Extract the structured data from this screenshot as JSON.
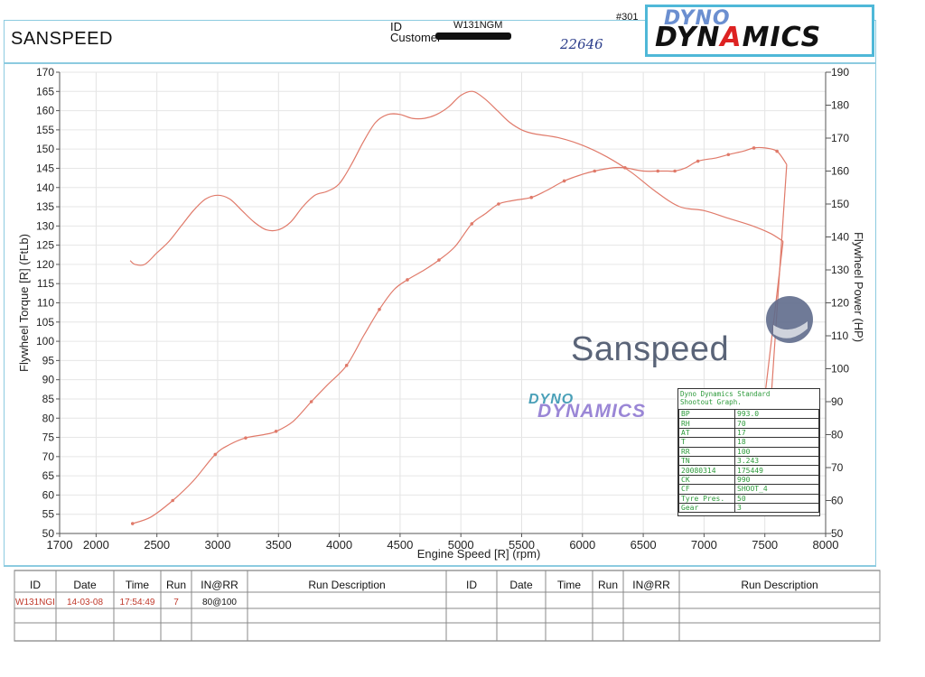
{
  "header": {
    "company": "SANSPEED",
    "id_label": "ID",
    "id_value": "W131NGM",
    "customer_label": "Customer",
    "sheet_no": "#301",
    "handwritten": "22646",
    "logo_top": "DYNO",
    "logo_bottom_pre": "DYN",
    "logo_bottom_mid": "A",
    "logo_bottom_post": "MICS"
  },
  "chart_data": {
    "type": "line",
    "xlabel": "Engine Speed [R] (rpm)",
    "ylabel_left": "Flywheel Torque [R] (FtLb)",
    "ylabel_right": "Flywheel Power (HP)",
    "xlim": [
      1700,
      8000
    ],
    "ylim_left": [
      50,
      170
    ],
    "ylim_right": [
      50,
      190
    ],
    "x_ticks": [
      "1700",
      "2000",
      "2500",
      "3000",
      "3500",
      "4000",
      "4500",
      "5000",
      "5500",
      "6000",
      "6500",
      "7000",
      "7500",
      "8000"
    ],
    "x_tick_values": [
      1700,
      2000,
      2500,
      3000,
      3500,
      4000,
      4500,
      5000,
      5500,
      6000,
      6500,
      7000,
      7500,
      8000
    ],
    "y_left_ticks": [
      50,
      55,
      60,
      65,
      70,
      75,
      80,
      85,
      90,
      95,
      100,
      105,
      110,
      115,
      120,
      125,
      130,
      135,
      140,
      145,
      150,
      155,
      160,
      165,
      170
    ],
    "y_right_ticks": [
      50,
      60,
      70,
      80,
      90,
      100,
      110,
      120,
      130,
      140,
      150,
      160,
      170,
      180,
      190
    ],
    "grid": true,
    "series": [
      {
        "axis": "left",
        "color": "#e07a6a",
        "x": [
          2280,
          2320,
          2400,
          2500,
          2600,
          2700,
          2800,
          2900,
          3000,
          3100,
          3200,
          3300,
          3400,
          3500,
          3600,
          3700,
          3800,
          3900,
          4000,
          4100,
          4200,
          4300,
          4400,
          4500,
          4600,
          4700,
          4800,
          4900,
          5000,
          5100,
          5200,
          5300,
          5400,
          5500,
          5600,
          5800,
          6000,
          6200,
          6400,
          6600,
          6800,
          7000,
          7200,
          7400,
          7550,
          7650
        ],
        "values": [
          121,
          120,
          120,
          123,
          126,
          130,
          134,
          137,
          138,
          137,
          134,
          131,
          129,
          129,
          131,
          135,
          138,
          139,
          141,
          146,
          152,
          157,
          159,
          159,
          158,
          158,
          159,
          161,
          164,
          165,
          163,
          160,
          157,
          155,
          154,
          153,
          151,
          148,
          144,
          139,
          135,
          134,
          132,
          130,
          128,
          126
        ]
      },
      {
        "axis": "right",
        "color": "#e07a6a",
        "x": [
          2300,
          2450,
          2630,
          2800,
          2980,
          3100,
          3230,
          3380,
          3480,
          3620,
          3770,
          3900,
          4060,
          4200,
          4330,
          4450,
          4560,
          4700,
          4820,
          4950,
          5090,
          5200,
          5310,
          5420,
          5580,
          5700,
          5850,
          6000,
          6100,
          6250,
          6350,
          6500,
          6620,
          6700,
          6760,
          6850,
          6950,
          7100,
          7200,
          7320,
          7410,
          7500,
          7600,
          7680
        ],
        "values": [
          53,
          55,
          60,
          66,
          74,
          77,
          79,
          80,
          81,
          84,
          90,
          95,
          101,
          110,
          118,
          124,
          127,
          130,
          133,
          137,
          144,
          147,
          150,
          151,
          152,
          154,
          157,
          159,
          160,
          161,
          161,
          160,
          160,
          160,
          160,
          161,
          163,
          164,
          165,
          166,
          167,
          167,
          166,
          162
        ]
      }
    ]
  },
  "watermark": {
    "name": "Sanspeed",
    "logo_top": "DYNO",
    "logo_bottom": "DYNAMICS"
  },
  "shootout": {
    "title_line1": "Dyno Dynamics Standard",
    "title_line2": "Shootout Graph.",
    "rows": [
      {
        "k": "BP",
        "v": "993.0"
      },
      {
        "k": "RH",
        "v": "70"
      },
      {
        "k": "AT",
        "v": "17"
      },
      {
        "k": "T",
        "v": "18"
      },
      {
        "k": "RR",
        "v": "100"
      },
      {
        "k": "TN",
        "v": "3.243"
      },
      {
        "k": "20080314",
        "v": "175449"
      },
      {
        "k": "CK",
        "v": "990"
      },
      {
        "k": "CF",
        "v": "SHOOT_4"
      },
      {
        "k": "Tyre Pres.",
        "v": "50"
      },
      {
        "k": "Gear",
        "v": "3"
      }
    ]
  },
  "footer": {
    "headers_left": [
      "ID",
      "Date",
      "Time",
      "Run",
      "IN@RR",
      "Run Description"
    ],
    "headers_right": [
      "ID",
      "Date",
      "Time",
      "Run",
      "IN@RR",
      "Run Description"
    ],
    "row1": [
      "W131NGI",
      "14-03-08",
      "17:54:49",
      "7",
      "80@100",
      ""
    ]
  }
}
